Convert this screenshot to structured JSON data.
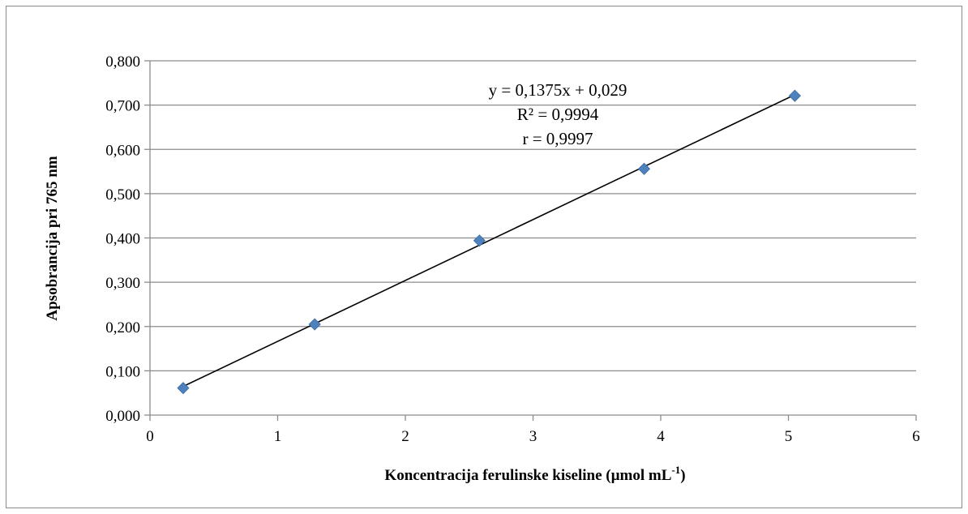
{
  "chart_data": {
    "type": "scatter",
    "xlabel": "Koncentracija ferulinske kiseline (µmol mL",
    "xlabel_sup": "-1",
    "xlabel_suffix": ")",
    "ylabel": "Apsobrancija pri 765 nm",
    "xlim": [
      0,
      6
    ],
    "ylim": [
      0,
      0.8
    ],
    "x_ticks": [
      "0",
      "1",
      "2",
      "3",
      "4",
      "5",
      "6"
    ],
    "y_ticks": [
      "0,000",
      "0,100",
      "0,200",
      "0,300",
      "0,400",
      "0,500",
      "0,600",
      "0,700",
      "0,800"
    ],
    "grid": true,
    "series": [
      {
        "color": "#4f81bd",
        "marker": "diamond",
        "points": [
          {
            "x": 0.26,
            "y": 0.061
          },
          {
            "x": 1.29,
            "y": 0.205
          },
          {
            "x": 2.58,
            "y": 0.394
          },
          {
            "x": 3.87,
            "y": 0.556
          },
          {
            "x": 5.05,
            "y": 0.721
          }
        ]
      }
    ],
    "trendline": {
      "slope": 0.1375,
      "intercept": 0.029,
      "x_range": [
        0.26,
        5.05
      ],
      "color": "#000000"
    },
    "annotations": [
      "y = 0,1375x + 0,029",
      "R² = 0,9994",
      "r = 0,9997"
    ]
  }
}
